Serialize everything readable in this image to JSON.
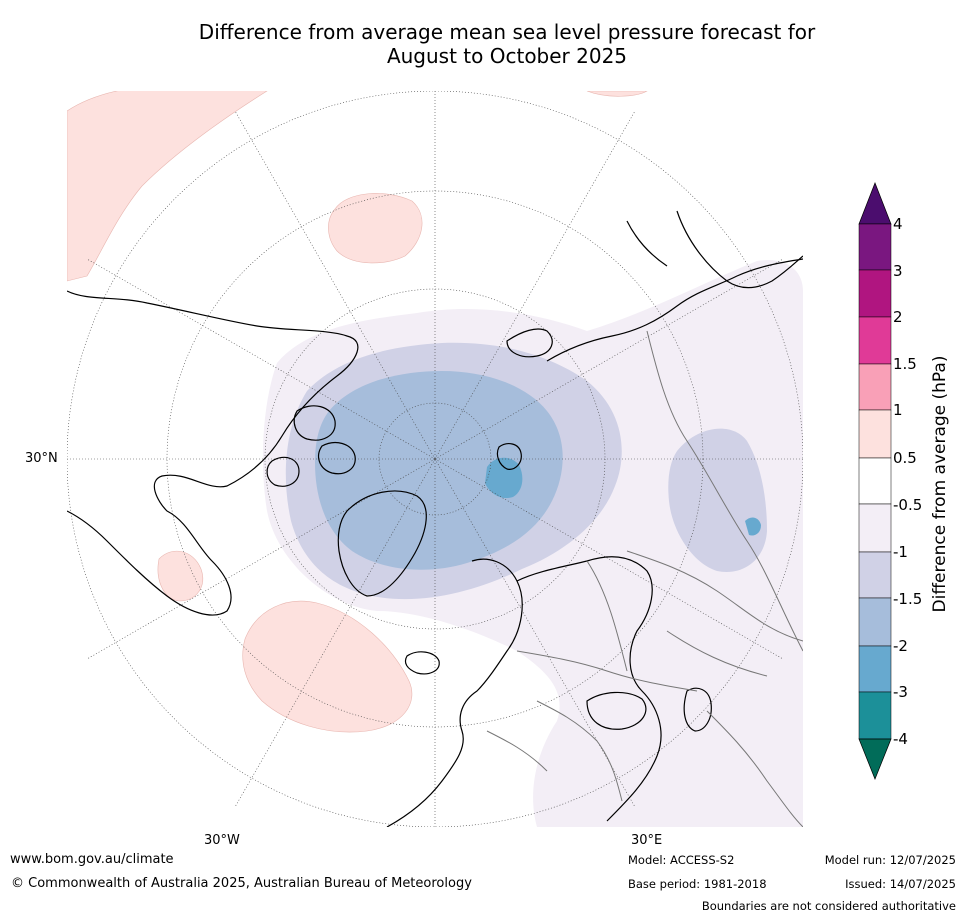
{
  "title_line1": "Difference from average mean sea level pressure forecast for",
  "title_line2": "August to October 2025",
  "map": {
    "lat_label": "30°N",
    "lon_labels": {
      "west": "30°W",
      "east": "30°E"
    }
  },
  "colorbar": {
    "label": "Difference from average (hPa)",
    "ticks": [
      "4",
      "3",
      "2",
      "1.5",
      "1",
      "0.5",
      "-0.5",
      "-1",
      "-1.5",
      "-2",
      "-3",
      "-4"
    ],
    "colors": {
      "above_4": "#4b0d6e",
      "3_to_4": "#7a1780",
      "2_to_3": "#b01580",
      "1.5_to_2": "#e03a97",
      "1_to_1.5": "#f9a0b7",
      "0.5_to_1": "#fde1de",
      "neutral": "#ffffff",
      "-1_to_-0.5": "#f3eef6",
      "-1.5_to_-1": "#d0d1e6",
      "-2_to_-1.5": "#a6bddb",
      "-3_to_-2": "#67a9cf",
      "-4_to_-3": "#1c9099",
      "below_-4": "#016c59"
    }
  },
  "footer": {
    "url": "www.bom.gov.au/climate",
    "copyright": "© Commonwealth of Australia 2025, Australian Bureau of Meteorology",
    "model": "Model: ACCESS-S2",
    "base_period": "Base period: 1981-2018",
    "model_run": "Model run: 12/07/2025",
    "issued": "Issued: 14/07/2025",
    "disclaimer": "Boundaries are not considered authoritative"
  }
}
